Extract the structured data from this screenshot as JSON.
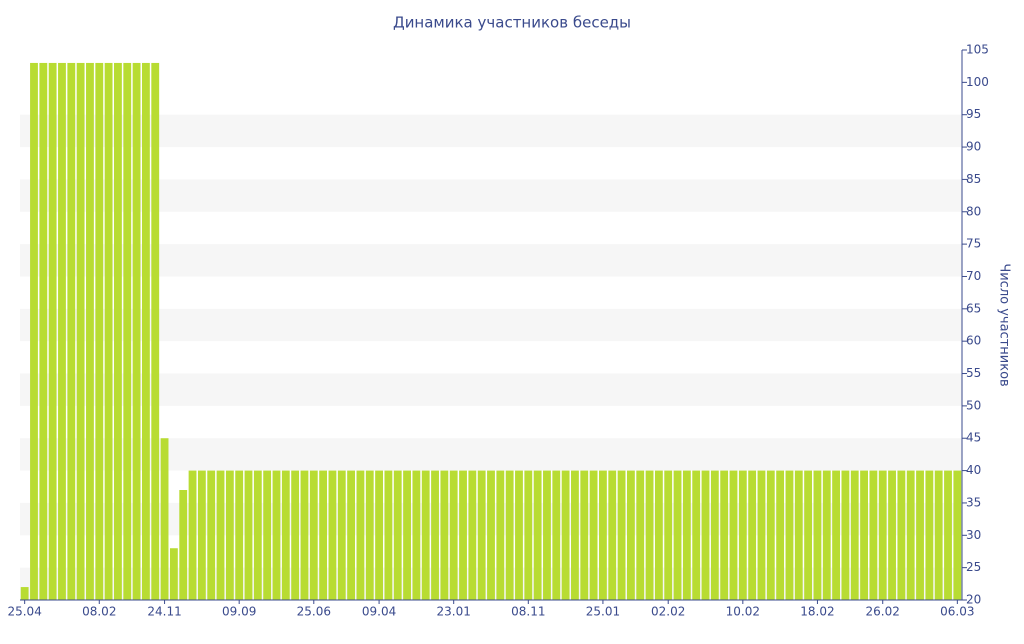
{
  "chart_data": {
    "type": "bar",
    "title": "Динамика участников беседы",
    "y_label": "Число участников",
    "categories": [
      "25.04",
      null,
      null,
      null,
      null,
      null,
      null,
      null,
      "08.02",
      null,
      null,
      null,
      null,
      null,
      null,
      "24.11",
      null,
      null,
      null,
      null,
      null,
      null,
      null,
      "09.09",
      null,
      null,
      null,
      null,
      null,
      null,
      null,
      "25.06",
      null,
      null,
      null,
      null,
      null,
      null,
      "09.04",
      null,
      null,
      null,
      null,
      null,
      null,
      null,
      "23.01",
      null,
      null,
      null,
      null,
      null,
      null,
      null,
      "08.11",
      null,
      null,
      null,
      null,
      null,
      null,
      null,
      "25.01",
      null,
      null,
      null,
      null,
      null,
      null,
      "02.02",
      null,
      null,
      null,
      null,
      null,
      null,
      null,
      "10.02",
      null,
      null,
      null,
      null,
      null,
      null,
      null,
      "18.02",
      null,
      null,
      null,
      null,
      null,
      null,
      "26.02",
      null,
      null,
      null,
      null,
      null,
      null,
      null,
      "06.03"
    ],
    "values": [
      22,
      103,
      103,
      103,
      103,
      103,
      103,
      103,
      103,
      103,
      103,
      103,
      103,
      103,
      103,
      45,
      28,
      37,
      40,
      40,
      40,
      40,
      40,
      40,
      40,
      40,
      40,
      40,
      40,
      40,
      40,
      40,
      40,
      40,
      40,
      40,
      40,
      40,
      40,
      40,
      40,
      40,
      40,
      40,
      40,
      40,
      40,
      40,
      40,
      40,
      40,
      40,
      40,
      40,
      40,
      40,
      40,
      40,
      40,
      40,
      40,
      40,
      40,
      40,
      40,
      40,
      40,
      40,
      40,
      40,
      40,
      40,
      40,
      40,
      40,
      40,
      40,
      40,
      40,
      40,
      40,
      40,
      40,
      40,
      40,
      40,
      40,
      40,
      40,
      40,
      40,
      40,
      40,
      40,
      40,
      40,
      40,
      40,
      40,
      40,
      40
    ],
    "color": "#b8dc32",
    "ylim": [
      20,
      105
    ],
    "yticks": [
      20,
      25,
      30,
      35,
      40,
      45,
      50,
      55,
      60,
      65,
      70,
      75,
      80,
      85,
      90,
      95,
      100,
      105
    ],
    "y_axis_side": "right",
    "grid": true
  }
}
